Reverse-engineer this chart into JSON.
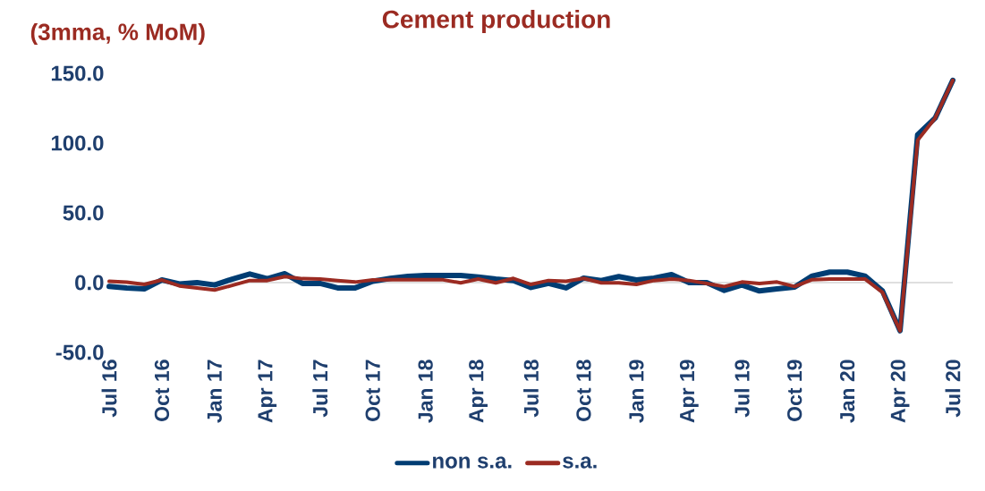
{
  "chart_data": {
    "type": "line",
    "title": "Cement production",
    "ylabel": "(3mma, % MoM)",
    "categories": [
      "Jul 16",
      null,
      null,
      "Oct 16",
      null,
      null,
      "Jan 17",
      null,
      null,
      "Apr 17",
      null,
      null,
      "Jul 17",
      null,
      null,
      "Oct 17",
      null,
      null,
      "Jan 18",
      null,
      null,
      "Apr 18",
      null,
      null,
      "Jul 18",
      null,
      null,
      "Oct 18",
      null,
      null,
      "Jan 19",
      null,
      null,
      "Apr 19",
      null,
      null,
      "Jul 19",
      null,
      null,
      "Oct 19",
      null,
      null,
      "Jan 20",
      null,
      null,
      "Apr 20",
      null,
      null,
      "Jul 20"
    ],
    "series": [
      {
        "name": "non s.a.",
        "color": "#003d73",
        "values": [
          -2.8,
          -3.8,
          -4.5,
          1.9,
          -1,
          0,
          -1.7,
          2.5,
          6.2,
          2.8,
          6.4,
          -0.6,
          -0.6,
          -3.8,
          -3.8,
          1,
          3,
          4.5,
          5.1,
          5.1,
          5.1,
          4,
          2.6,
          1.5,
          -3.5,
          -0.6,
          -3.8,
          3.2,
          1.5,
          4.3,
          1.9,
          3.2,
          5.8,
          0,
          0,
          -5.6,
          -1.7,
          -6,
          -4.5,
          -3.2,
          4.7,
          7.5,
          7.5,
          4.7,
          -6,
          -34.5,
          106,
          118,
          145
        ]
      },
      {
        "name": "s.a.",
        "color": "#9b2b22",
        "values": [
          0.9,
          0.3,
          -1.3,
          1.9,
          -2.4,
          -3.8,
          -5.3,
          -2,
          1.5,
          1.5,
          4.3,
          2.8,
          2.6,
          1.5,
          0.4,
          1.9,
          2,
          2,
          2,
          2,
          -0.2,
          2.6,
          -0.2,
          3,
          -1.3,
          1.5,
          0.9,
          3,
          -0.2,
          -0.2,
          -1.3,
          1.5,
          2.6,
          1.5,
          -0.6,
          -2.8,
          0.4,
          -0.6,
          0.4,
          -2.8,
          2.1,
          2.6,
          2.6,
          2.6,
          -7,
          -34.5,
          102,
          118,
          145
        ]
      }
    ],
    "ylim": [
      -50,
      150
    ],
    "yticks": [
      {
        "value": -50,
        "label": "-50.0"
      },
      {
        "value": 0,
        "label": "0.0"
      },
      {
        "value": 50,
        "label": "50.0"
      },
      {
        "value": 100,
        "label": "100.0"
      },
      {
        "value": 150,
        "label": "150.0"
      }
    ],
    "ref_lines": [
      {
        "axis": "y",
        "value": 0,
        "color": "#d4d4d4"
      }
    ],
    "legend": "bottom",
    "grid": false,
    "marker": "none",
    "line_style": "solid"
  }
}
